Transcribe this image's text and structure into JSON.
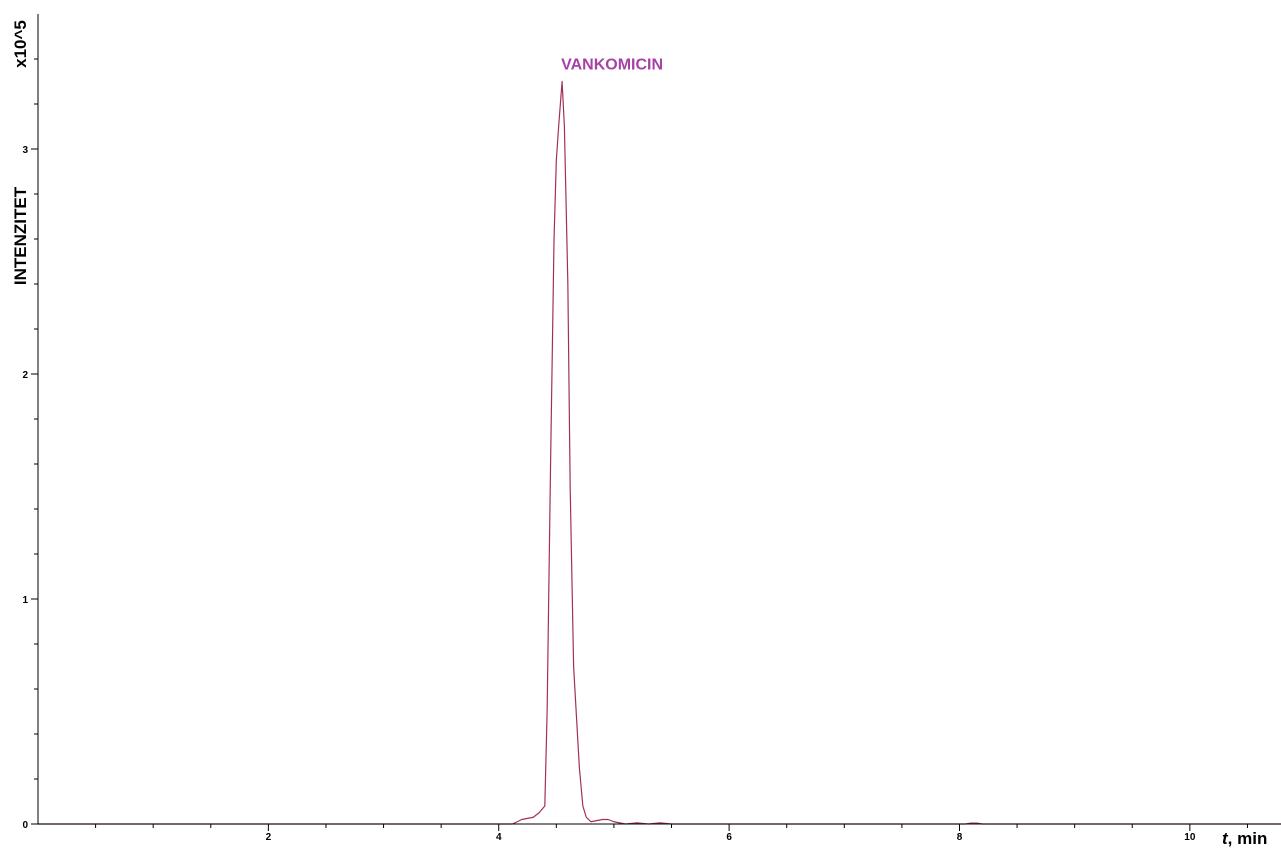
{
  "chart_data": {
    "type": "line",
    "title": "",
    "xlabel_italic": "t",
    "xlabel_rest": ", min",
    "ylabel": "INTENZITET",
    "y_scale_label": "x10^5",
    "xlim": [
      0.0,
      10.8
    ],
    "ylim": [
      0,
      3.6
    ],
    "x_ticks": [
      2,
      4,
      6,
      8,
      10
    ],
    "x_tick_labels": [
      "2",
      "4",
      "6",
      "8",
      "10"
    ],
    "x_minor_step": 0.5,
    "y_ticks": [
      0,
      1,
      2,
      3
    ],
    "y_tick_labels": [
      "0",
      "1",
      "2",
      "3"
    ],
    "y_minor_step": 0.2,
    "grid": false,
    "line_color": "#a0305a",
    "label_color": "#a642a6",
    "series": [
      {
        "x": [
          0.0,
          4.0,
          4.12,
          4.2,
          4.25,
          4.3,
          4.35,
          4.4,
          4.42,
          4.45,
          4.48,
          4.5,
          4.52,
          4.55,
          4.57,
          4.6,
          4.62,
          4.65,
          4.7,
          4.73,
          4.76,
          4.8,
          4.85,
          4.9,
          4.95,
          5.0,
          5.05,
          5.1,
          5.2,
          5.3,
          5.4,
          5.5,
          8.05,
          8.1,
          8.15,
          8.2,
          10.8
        ],
        "y": [
          0.0,
          0.0,
          0.0,
          0.02,
          0.025,
          0.03,
          0.05,
          0.08,
          0.5,
          1.6,
          2.6,
          2.95,
          3.1,
          3.3,
          3.1,
          2.4,
          1.5,
          0.7,
          0.25,
          0.08,
          0.03,
          0.01,
          0.015,
          0.02,
          0.02,
          0.01,
          0.005,
          0.0,
          0.005,
          0.0,
          0.005,
          0.0,
          0.0,
          0.004,
          0.004,
          0.0,
          0.0
        ]
      }
    ],
    "annotations": [
      {
        "text": "VANKOMICIN",
        "x": 4.55,
        "y": 3.3
      }
    ]
  }
}
